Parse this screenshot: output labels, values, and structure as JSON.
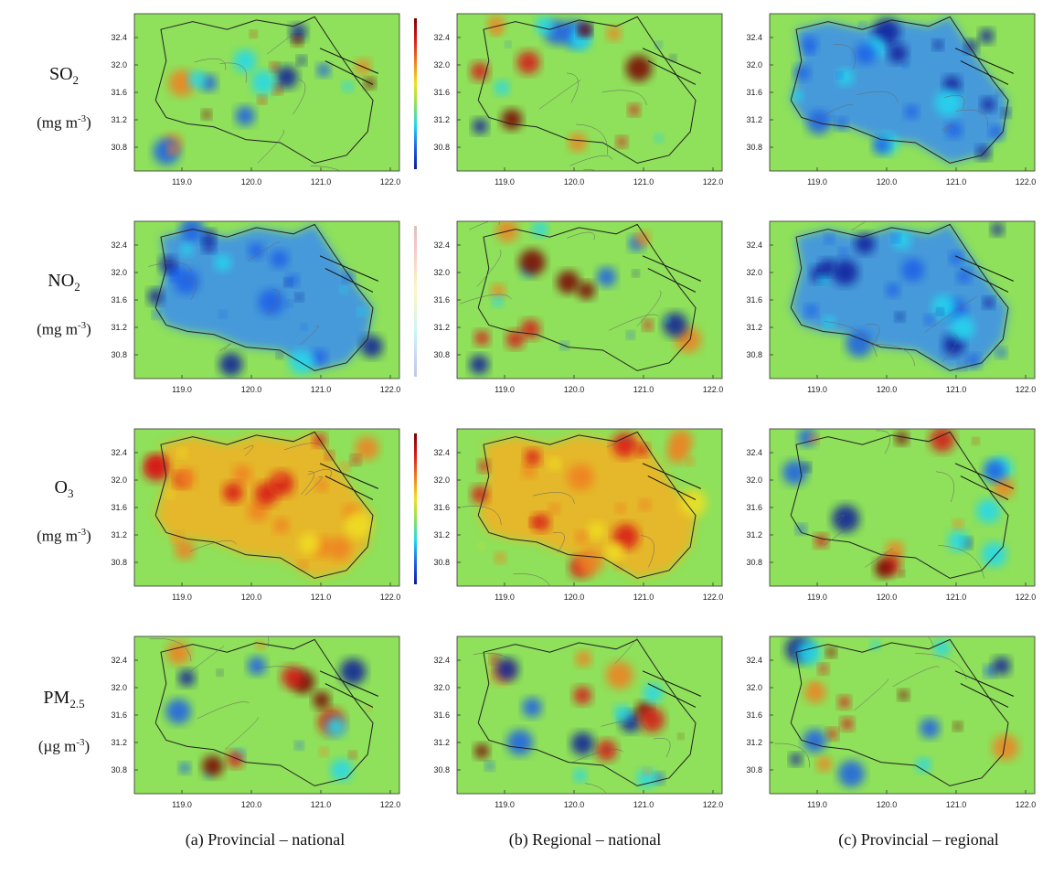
{
  "rows": [
    {
      "species": "SO",
      "species_sub": "2",
      "unit_prefix": "(mg m",
      "unit_sup": "-3",
      "unit_suffix": ")"
    },
    {
      "species": "NO",
      "species_sub": "2",
      "unit_prefix": "(mg m",
      "unit_sup": "-3",
      "unit_suffix": ")"
    },
    {
      "species": "O",
      "species_sub": "3",
      "unit_prefix": "(mg m",
      "unit_sup": "-3",
      "unit_suffix": ")"
    },
    {
      "species": "PM",
      "species_sub": "2.5",
      "unit_prefix": "(µg m",
      "unit_sup": "-3",
      "unit_suffix": ")"
    }
  ],
  "columns": [
    {
      "caption": "(a) Provincial – national"
    },
    {
      "caption": "(b) Regional – national"
    },
    {
      "caption": "(c) Provincial – regional"
    }
  ],
  "axes": {
    "lat_ticks": [
      "32.4",
      "32.0",
      "31.6",
      "31.2",
      "30.8"
    ],
    "lon_ticks": [
      "119.0",
      "120.0",
      "121.0",
      "122.0"
    ]
  },
  "colors": {
    "background_field": "#8fe05a",
    "scale": [
      "#0a1a9a",
      "#1f5fe8",
      "#20d8f0",
      "#8fe05a",
      "#f0e020",
      "#f08020",
      "#d81818",
      "#7a0000"
    ]
  },
  "panel_tone": [
    [
      "mixed",
      "mixed",
      "negative"
    ],
    [
      "negative",
      "mixed",
      "negative"
    ],
    [
      "positive",
      "positive",
      "mixed"
    ],
    [
      "mixed",
      "mixed",
      "mixed"
    ]
  ]
}
